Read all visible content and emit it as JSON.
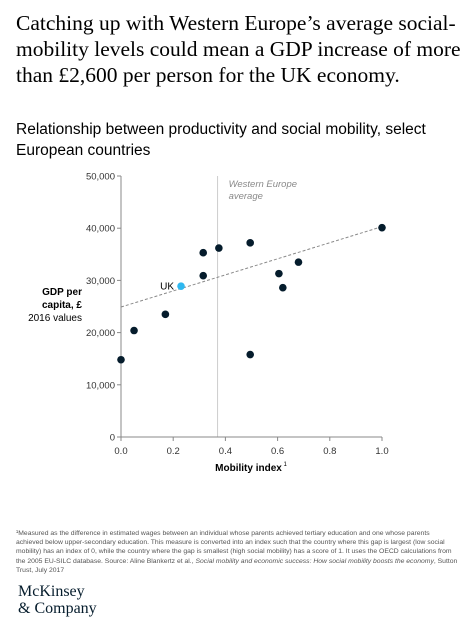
{
  "headline": "Catching up with Western Europe’s average social-mobility levels could mean a GDP increase of more than £2,600 per person for the UK economy.",
  "subtitle": "Relationship between productivity and social mobility, select European countries",
  "chart_data": {
    "type": "scatter",
    "title": "Relationship between productivity and social mobility, select European countries",
    "xlabel": "Mobility index",
    "xlabel_sup": "1",
    "ylabel_bold": "GDP per capita, £",
    "ylabel_sub": "2016 values",
    "xlim": [
      0,
      1.0
    ],
    "ylim": [
      0,
      50000
    ],
    "xticks": [
      "0.0",
      "0.2",
      "0.4",
      "0.6",
      "0.8",
      "1.0"
    ],
    "xtick_values": [
      0,
      0.2,
      0.4,
      0.6,
      0.8,
      1.0
    ],
    "yticks": [
      "0",
      "10,000",
      "20,000",
      "30,000",
      "40,000",
      "50,000"
    ],
    "ytick_values": [
      0,
      10000,
      20000,
      30000,
      40000,
      50000
    ],
    "grid": false,
    "points": [
      {
        "x": 0.0,
        "y": 14800
      },
      {
        "x": 0.05,
        "y": 20400
      },
      {
        "x": 0.17,
        "y": 23500
      },
      {
        "x": 0.23,
        "y": 28900,
        "label": "UK",
        "highlight": true
      },
      {
        "x": 0.315,
        "y": 35300
      },
      {
        "x": 0.315,
        "y": 30900
      },
      {
        "x": 0.375,
        "y": 36200
      },
      {
        "x": 0.495,
        "y": 37200
      },
      {
        "x": 0.495,
        "y": 15800
      },
      {
        "x": 0.605,
        "y": 31300
      },
      {
        "x": 0.62,
        "y": 28600
      },
      {
        "x": 0.68,
        "y": 33500
      },
      {
        "x": 1.0,
        "y": 40100
      }
    ],
    "trendline": {
      "x": [
        0.0,
        1.0
      ],
      "y": [
        24900,
        40300
      ]
    },
    "reference_line": {
      "x": 0.37,
      "label_line1": "Western Europe",
      "label_line2": "average"
    },
    "colors": {
      "point": "#051c2c",
      "highlight": "#2fb8f0",
      "axis": "#888888",
      "trend": "#8a8a8a",
      "refline": "#cccccc"
    }
  },
  "footnote": {
    "text": "¹Measured as the difference in estimated wages between an individual whose parents achieved tertiary education and one whose parents achieved below upper-secondary education. This measure is converted into an index such that the country where this gap is largest (low social mobility) has an index of 0, while the country where the gap is smallest (high social mobility) has a score of 1. It uses the OECD calculations from the 2005 EU-SILC database.",
    "source_prefix": "Source: Aline Blankertz et al., ",
    "source_title": "Social mobility and economic success: How social mobility boosts the economy",
    "source_suffix": ", Sutton Trust, July 2017"
  },
  "logo": {
    "line1": "McKinsey",
    "line2": "& Company"
  }
}
